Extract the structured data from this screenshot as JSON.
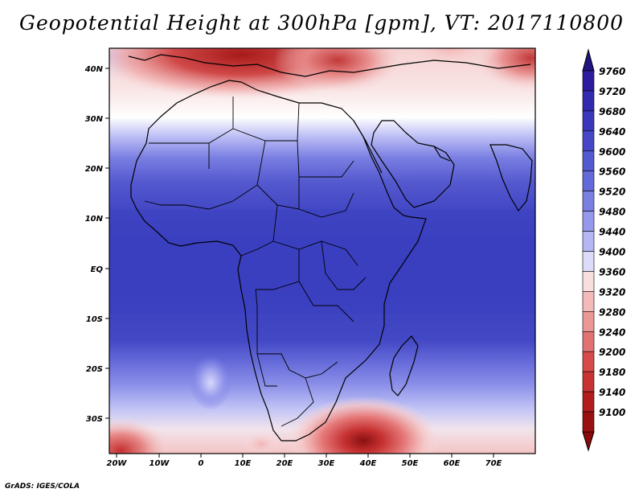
{
  "title": "Geopotential Height at 300hPa [gpm], VT: 2017110800",
  "credit": "GrADS: IGES/COLA",
  "map": {
    "lon_ticks": [
      "20W",
      "10W",
      "0",
      "10E",
      "20E",
      "30E",
      "40E",
      "50E",
      "60E",
      "70E"
    ],
    "lat_ticks": [
      "40N",
      "30N",
      "20N",
      "10N",
      "EQ",
      "10S",
      "20S",
      "30S"
    ],
    "colorbar_labels": [
      "9760",
      "9720",
      "9680",
      "9640",
      "9600",
      "9560",
      "9520",
      "9480",
      "9440",
      "9400",
      "9360",
      "9320",
      "9280",
      "9240",
      "9200",
      "9180",
      "9140",
      "9100"
    ],
    "colorbar_colors": [
      "#2c1d9e",
      "#3129ae",
      "#3a37bd",
      "#4547c6",
      "#5459cf",
      "#6369d8",
      "#7a7fe2",
      "#9599ec",
      "#b4b7f4",
      "#dcdcfa",
      "#f9dede",
      "#f4b9b9",
      "#eb9797",
      "#e07272",
      "#d64a4a",
      "#c93232",
      "#b31c1c",
      "#9a0f0f"
    ],
    "colorbar_top_color": "#1f1580",
    "colorbar_bottom_color": "#8a0a0a"
  }
}
